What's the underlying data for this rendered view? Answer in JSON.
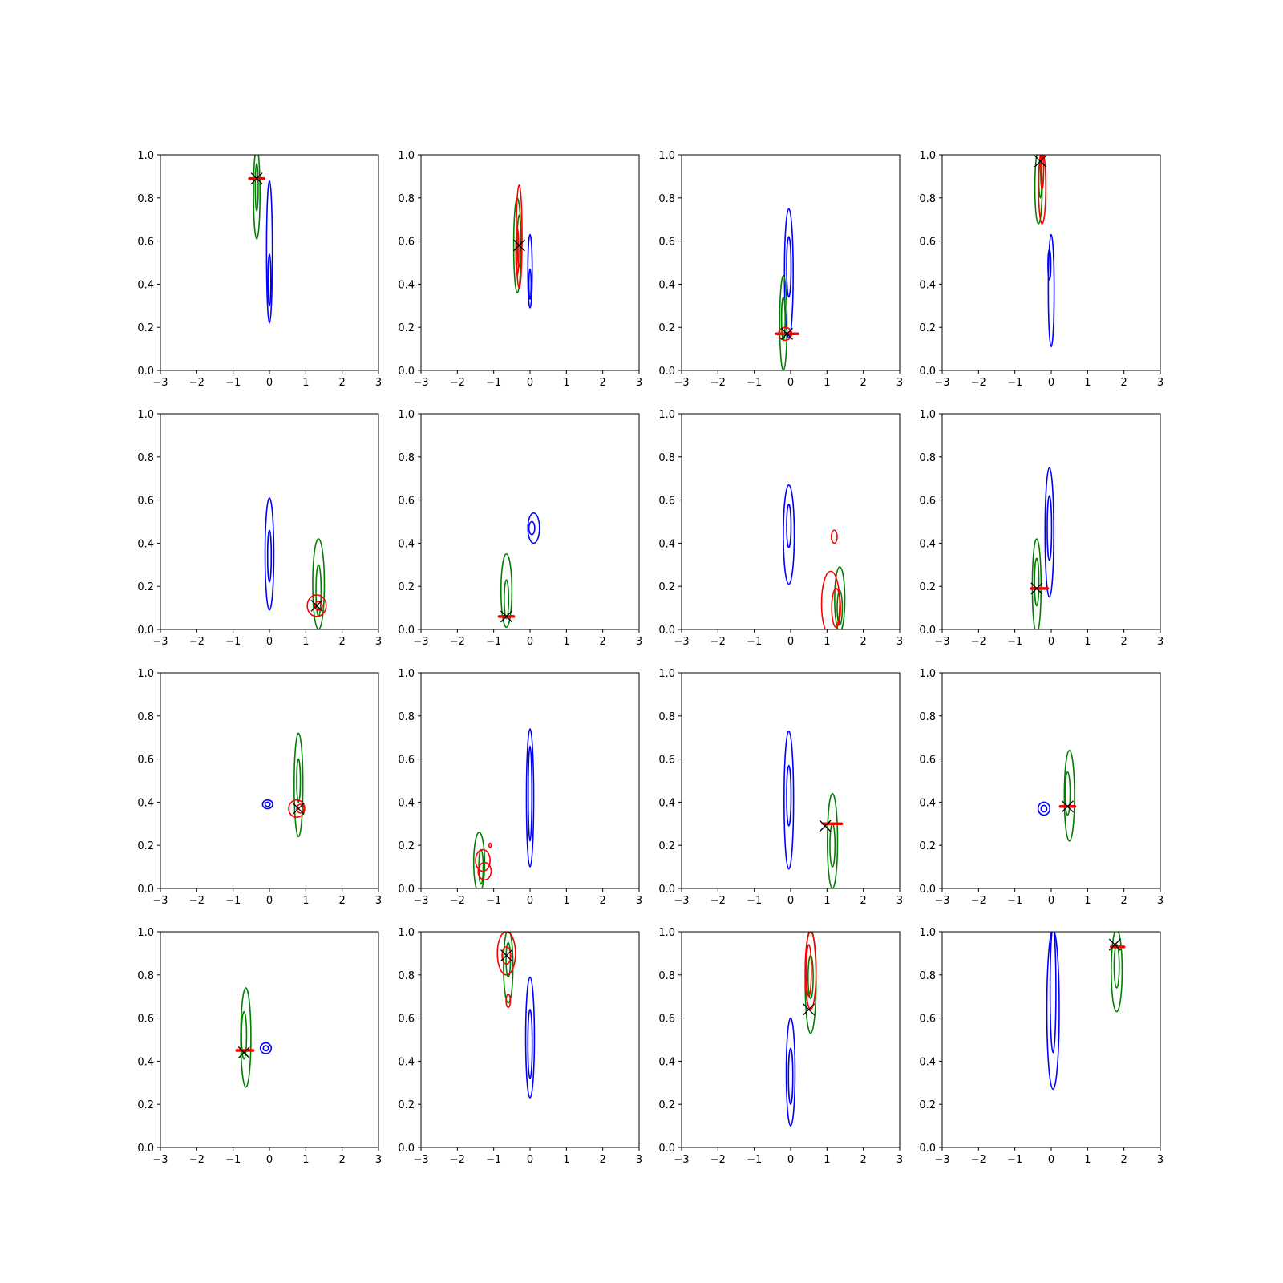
{
  "colors": {
    "blue": "#0000ff",
    "green": "#008000",
    "red": "#ff0000",
    "marker": "#000000",
    "axes": "#000000"
  },
  "chart_data": {
    "type": "contour-grid",
    "rows": 4,
    "cols": 4,
    "xlim": [
      -3,
      3
    ],
    "ylim": [
      0.0,
      1.0
    ],
    "xticks": [
      "−3",
      "−2",
      "−1",
      "0",
      "1",
      "2",
      "3"
    ],
    "yticks": [
      "0.0",
      "0.2",
      "0.4",
      "0.6",
      "0.8",
      "1.0"
    ],
    "panels": [
      {
        "blue": [
          [
            0,
            0.55,
            0.08,
            0.33
          ],
          [
            0,
            0.42,
            0.04,
            0.12
          ]
        ],
        "green": [
          [
            -0.35,
            0.82,
            0.09,
            0.21
          ],
          [
            -0.35,
            0.85,
            0.04,
            0.11
          ]
        ],
        "red": [],
        "redbar": [
          -0.55,
          -0.15,
          0.89
        ],
        "x": [
          -0.35,
          0.89
        ]
      },
      {
        "blue": [
          [
            0,
            0.46,
            0.06,
            0.17
          ],
          [
            0,
            0.4,
            0.03,
            0.07
          ]
        ],
        "green": [
          [
            -0.35,
            0.58,
            0.1,
            0.22
          ],
          [
            -0.3,
            0.6,
            0.05,
            0.12
          ]
        ],
        "red": [
          [
            -0.3,
            0.62,
            0.08,
            0.24
          ],
          [
            -0.35,
            0.55,
            0.04,
            0.11
          ]
        ],
        "redbar": null,
        "x": [
          -0.3,
          0.58
        ]
      },
      {
        "blue": [
          [
            -0.05,
            0.45,
            0.12,
            0.3
          ],
          [
            -0.05,
            0.48,
            0.06,
            0.14
          ]
        ],
        "green": [
          [
            -0.2,
            0.22,
            0.1,
            0.22
          ],
          [
            -0.2,
            0.24,
            0.05,
            0.1
          ]
        ],
        "red": [
          [
            -0.15,
            0.17,
            0.18,
            0.03
          ]
        ],
        "redbar": [
          -0.4,
          0.2,
          0.17
        ],
        "x": [
          -0.1,
          0.17
        ]
      },
      {
        "blue": [
          [
            0,
            0.37,
            0.08,
            0.26
          ],
          [
            -0.05,
            0.49,
            0.04,
            0.07
          ]
        ],
        "green": [
          [
            -0.35,
            0.85,
            0.1,
            0.17
          ],
          [
            -0.3,
            0.88,
            0.04,
            0.08
          ]
        ],
        "red": [
          [
            -0.25,
            0.85,
            0.1,
            0.17
          ],
          [
            -0.25,
            0.92,
            0.04,
            0.08
          ]
        ],
        "redbar": null,
        "x": [
          -0.3,
          0.97
        ]
      },
      {
        "blue": [
          [
            0,
            0.35,
            0.12,
            0.26
          ],
          [
            0,
            0.34,
            0.05,
            0.12
          ]
        ],
        "green": [
          [
            1.35,
            0.21,
            0.16,
            0.21
          ],
          [
            1.35,
            0.18,
            0.07,
            0.12
          ]
        ],
        "red": [
          [
            1.3,
            0.11,
            0.26,
            0.05
          ],
          [
            1.35,
            0.11,
            0.1,
            0.02
          ]
        ],
        "redbar": null,
        "x": [
          1.3,
          0.11
        ]
      },
      {
        "blue": [
          [
            0.1,
            0.47,
            0.16,
            0.07
          ],
          [
            0.05,
            0.47,
            0.08,
            0.03
          ]
        ],
        "green": [
          [
            -0.65,
            0.18,
            0.15,
            0.17
          ],
          [
            -0.65,
            0.14,
            0.06,
            0.09
          ]
        ],
        "red": [],
        "redbar": [
          -0.85,
          -0.45,
          0.06
        ],
        "x": [
          -0.65,
          0.06
        ]
      },
      {
        "blue": [
          [
            -0.05,
            0.44,
            0.15,
            0.23
          ],
          [
            -0.05,
            0.48,
            0.06,
            0.1
          ]
        ],
        "green": [
          [
            1.35,
            0.14,
            0.14,
            0.15
          ],
          [
            1.35,
            0.1,
            0.07,
            0.08
          ]
        ],
        "red": [
          [
            1.2,
            0.43,
            0.08,
            0.03
          ],
          [
            1.1,
            0.12,
            0.25,
            0.15
          ],
          [
            1.25,
            0.1,
            0.12,
            0.09
          ]
        ],
        "redbar": null,
        "x": null
      },
      {
        "blue": [
          [
            -0.05,
            0.45,
            0.12,
            0.3
          ],
          [
            -0.05,
            0.47,
            0.06,
            0.15
          ]
        ],
        "green": [
          [
            -0.4,
            0.2,
            0.12,
            0.22
          ],
          [
            -0.4,
            0.22,
            0.06,
            0.11
          ]
        ],
        "red": [],
        "redbar": [
          -0.55,
          -0.1,
          0.19
        ],
        "x": [
          -0.4,
          0.19
        ]
      },
      {
        "blue": [
          [
            -0.05,
            0.39,
            0.14,
            0.02
          ],
          [
            -0.05,
            0.39,
            0.07,
            0.01
          ]
        ],
        "green": [
          [
            0.8,
            0.48,
            0.12,
            0.24
          ],
          [
            0.8,
            0.5,
            0.05,
            0.1
          ]
        ],
        "red": [
          [
            0.75,
            0.37,
            0.22,
            0.04
          ],
          [
            0.85,
            0.37,
            0.1,
            0.02
          ]
        ],
        "redbar": null,
        "x": [
          0.8,
          0.37
        ]
      },
      {
        "blue": [
          [
            0,
            0.42,
            0.1,
            0.32
          ],
          [
            0,
            0.44,
            0.05,
            0.22
          ]
        ],
        "green": [
          [
            -1.4,
            0.12,
            0.15,
            0.14
          ],
          [
            -1.35,
            0.1,
            0.06,
            0.08
          ]
        ],
        "red": [
          [
            -1.3,
            0.13,
            0.2,
            0.05
          ],
          [
            -1.25,
            0.08,
            0.18,
            0.04
          ],
          [
            -1.1,
            0.2,
            0.03,
            0.01
          ]
        ],
        "redbar": null,
        "x": null
      },
      {
        "blue": [
          [
            -0.05,
            0.41,
            0.13,
            0.32
          ],
          [
            -0.05,
            0.43,
            0.06,
            0.14
          ]
        ],
        "green": [
          [
            1.15,
            0.22,
            0.14,
            0.22
          ],
          [
            1.15,
            0.2,
            0.07,
            0.1
          ]
        ],
        "red": [],
        "redbar": [
          0.9,
          1.4,
          0.3
        ],
        "x": [
          0.95,
          0.29
        ]
      },
      {
        "blue": [
          [
            -0.2,
            0.37,
            0.16,
            0.03
          ],
          [
            -0.2,
            0.37,
            0.08,
            0.015
          ]
        ],
        "green": [
          [
            0.5,
            0.43,
            0.14,
            0.21
          ],
          [
            0.45,
            0.44,
            0.07,
            0.1
          ]
        ],
        "red": [],
        "redbar": [
          0.25,
          0.65,
          0.38
        ],
        "x": [
          0.45,
          0.38
        ]
      },
      {
        "blue": [
          [
            -0.1,
            0.46,
            0.15,
            0.025
          ],
          [
            -0.1,
            0.46,
            0.07,
            0.012
          ]
        ],
        "green": [
          [
            -0.65,
            0.51,
            0.14,
            0.23
          ],
          [
            -0.7,
            0.52,
            0.07,
            0.11
          ]
        ],
        "red": [],
        "redbar": [
          -0.9,
          -0.45,
          0.45
        ],
        "x": [
          -0.7,
          0.44
        ]
      },
      {
        "blue": [
          [
            0,
            0.51,
            0.12,
            0.28
          ],
          [
            0,
            0.48,
            0.06,
            0.16
          ]
        ],
        "green": [
          [
            -0.6,
            0.84,
            0.13,
            0.17
          ],
          [
            -0.6,
            0.87,
            0.06,
            0.08
          ]
        ],
        "red": [
          [
            -0.65,
            0.9,
            0.25,
            0.1
          ],
          [
            -0.65,
            0.89,
            0.12,
            0.04
          ],
          [
            -0.6,
            0.68,
            0.06,
            0.03
          ]
        ],
        "redbar": null,
        "x": [
          -0.65,
          0.89
        ]
      },
      {
        "blue": [
          [
            0,
            0.35,
            0.12,
            0.25
          ],
          [
            0,
            0.33,
            0.06,
            0.13
          ]
        ],
        "green": [
          [
            0.55,
            0.77,
            0.15,
            0.24
          ],
          [
            0.55,
            0.79,
            0.07,
            0.1
          ]
        ],
        "red": [
          [
            0.55,
            0.82,
            0.15,
            0.18
          ],
          [
            0.5,
            0.82,
            0.07,
            0.12
          ]
        ],
        "redbar": null,
        "x": [
          0.5,
          0.64
        ]
      },
      {
        "blue": [
          [
            0.05,
            0.64,
            0.17,
            0.37
          ],
          [
            0.05,
            0.73,
            0.08,
            0.29
          ]
        ],
        "green": [
          [
            1.8,
            0.82,
            0.15,
            0.19
          ],
          [
            1.8,
            0.84,
            0.07,
            0.1
          ]
        ],
        "red": [],
        "redbar": [
          1.65,
          2.0,
          0.93
        ],
        "x": [
          1.75,
          0.94
        ]
      }
    ]
  }
}
